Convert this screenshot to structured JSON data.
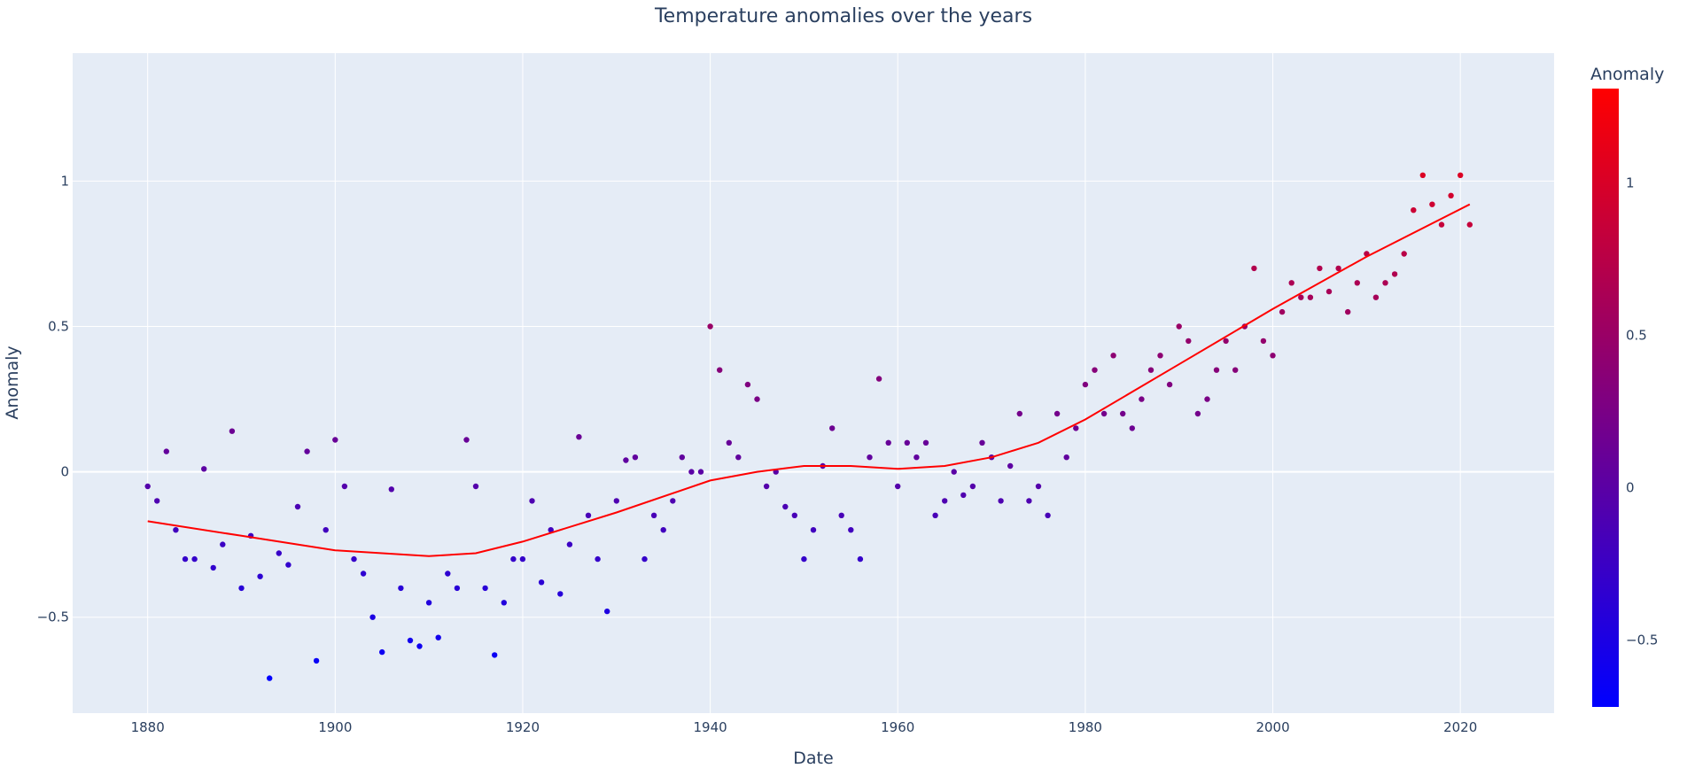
{
  "chart_data": {
    "type": "scatter",
    "title": "Temperature anomalies over the years",
    "xlabel": "Date",
    "ylabel": "Anomaly",
    "xlim": [
      1872,
      2030
    ],
    "ylim": [
      -0.83,
      1.44
    ],
    "x_ticks": [
      "1880",
      "1900",
      "1920",
      "1940",
      "1960",
      "1980",
      "2000",
      "2020"
    ],
    "y_ticks": [
      "-0.5",
      "0",
      "0.5",
      "1"
    ],
    "grid": true,
    "colorbar": {
      "title": "Anomaly",
      "range": [
        -0.72,
        1.31
      ],
      "ticks": [
        "-0.5",
        "0",
        "0.5",
        "1"
      ],
      "low_color": "#0000ff",
      "high_color": "#ff0000"
    },
    "marker_colorscale": [
      "#0000ff",
      "#ff0000"
    ],
    "trend_color": "#ff0000",
    "plot_bg": "#e5ecf6",
    "series": [
      {
        "type": "scatter",
        "points": [
          [
            1880.0,
            -0.05
          ],
          [
            1881.0,
            -0.1
          ],
          [
            1882.0,
            0.07
          ],
          [
            1883.0,
            -0.2
          ],
          [
            1884.0,
            -0.3
          ],
          [
            1885.0,
            -0.3
          ],
          [
            1886.0,
            0.01
          ],
          [
            1887.0,
            -0.33
          ],
          [
            1888.0,
            -0.25
          ],
          [
            1889.0,
            0.14
          ],
          [
            1890.0,
            -0.4
          ],
          [
            1891.0,
            -0.22
          ],
          [
            1892.0,
            -0.36
          ],
          [
            1893.0,
            -0.71
          ],
          [
            1894.0,
            -0.28
          ],
          [
            1895.0,
            -0.32
          ],
          [
            1896.0,
            -0.12
          ],
          [
            1897.0,
            0.07
          ],
          [
            1898.0,
            -0.65
          ],
          [
            1899.0,
            -0.2
          ],
          [
            1900.0,
            0.11
          ],
          [
            1901.0,
            -0.05
          ],
          [
            1902.0,
            -0.3
          ],
          [
            1903.0,
            -0.35
          ],
          [
            1904.0,
            -0.5
          ],
          [
            1905.0,
            -0.62
          ],
          [
            1906.0,
            -0.06
          ],
          [
            1907.0,
            -0.4
          ],
          [
            1908.0,
            -0.58
          ],
          [
            1909.0,
            -0.6
          ],
          [
            1910.0,
            -0.45
          ],
          [
            1911.0,
            -0.57
          ],
          [
            1912.0,
            -0.35
          ],
          [
            1913.0,
            -0.4
          ],
          [
            1914.0,
            0.11
          ],
          [
            1915.0,
            -0.05
          ],
          [
            1916.0,
            -0.4
          ],
          [
            1917.0,
            -0.63
          ],
          [
            1918.0,
            -0.45
          ],
          [
            1919.0,
            -0.3
          ],
          [
            1920.0,
            -0.3
          ],
          [
            1921.0,
            -0.1
          ],
          [
            1922.0,
            -0.38
          ],
          [
            1923.0,
            -0.2
          ],
          [
            1924.0,
            -0.42
          ],
          [
            1925.0,
            -0.25
          ],
          [
            1926.0,
            0.12
          ],
          [
            1927.0,
            -0.15
          ],
          [
            1928.0,
            -0.3
          ],
          [
            1929.0,
            -0.48
          ],
          [
            1930.0,
            -0.1
          ],
          [
            1931.0,
            0.04
          ],
          [
            1932.0,
            0.05
          ],
          [
            1933.0,
            -0.3
          ],
          [
            1934.0,
            -0.15
          ],
          [
            1935.0,
            -0.2
          ],
          [
            1936.0,
            -0.1
          ],
          [
            1937.0,
            0.05
          ],
          [
            1938.0,
            0.0
          ],
          [
            1939.0,
            0.0
          ],
          [
            1940.0,
            0.5
          ],
          [
            1941.0,
            0.35
          ],
          [
            1942.0,
            0.1
          ],
          [
            1943.0,
            0.05
          ],
          [
            1944.0,
            0.3
          ],
          [
            1945.0,
            0.25
          ],
          [
            1946.0,
            -0.05
          ],
          [
            1947.0,
            0.0
          ],
          [
            1948.0,
            -0.12
          ],
          [
            1949.0,
            -0.15
          ],
          [
            1950.0,
            -0.3
          ],
          [
            1951.0,
            -0.2
          ],
          [
            1952.0,
            0.02
          ],
          [
            1953.0,
            0.15
          ],
          [
            1954.0,
            -0.15
          ],
          [
            1955.0,
            -0.2
          ],
          [
            1956.0,
            -0.3
          ],
          [
            1957.0,
            0.05
          ],
          [
            1958.0,
            0.32
          ],
          [
            1959.0,
            0.1
          ],
          [
            1960.0,
            -0.05
          ],
          [
            1961.0,
            0.1
          ],
          [
            1962.0,
            0.05
          ],
          [
            1963.0,
            0.1
          ],
          [
            1964.0,
            -0.15
          ],
          [
            1965.0,
            -0.1
          ],
          [
            1966.0,
            0.0
          ],
          [
            1967.0,
            -0.08
          ],
          [
            1968.0,
            -0.05
          ],
          [
            1969.0,
            0.1
          ],
          [
            1970.0,
            0.05
          ],
          [
            1971.0,
            -0.1
          ],
          [
            1972.0,
            0.02
          ],
          [
            1973.0,
            0.2
          ],
          [
            1974.0,
            -0.1
          ],
          [
            1975.0,
            -0.05
          ],
          [
            1976.0,
            -0.15
          ],
          [
            1977.0,
            0.2
          ],
          [
            1978.0,
            0.05
          ],
          [
            1979.0,
            0.15
          ],
          [
            1980.0,
            0.3
          ],
          [
            1981.0,
            0.35
          ],
          [
            1982.0,
            0.2
          ],
          [
            1983.0,
            0.4
          ],
          [
            1984.0,
            0.2
          ],
          [
            1985.0,
            0.15
          ],
          [
            1986.0,
            0.25
          ],
          [
            1987.0,
            0.35
          ],
          [
            1988.0,
            0.4
          ],
          [
            1989.0,
            0.3
          ],
          [
            1990.0,
            0.5
          ],
          [
            1991.0,
            0.45
          ],
          [
            1992.0,
            0.2
          ],
          [
            1993.0,
            0.25
          ],
          [
            1994.0,
            0.35
          ],
          [
            1995.0,
            0.45
          ],
          [
            1996.0,
            0.35
          ],
          [
            1997.0,
            0.5
          ],
          [
            1998.0,
            0.7
          ],
          [
            1999.0,
            0.45
          ],
          [
            2000.0,
            0.4
          ],
          [
            2001.0,
            0.55
          ],
          [
            2002.0,
            0.65
          ],
          [
            2003.0,
            0.6
          ],
          [
            2004.0,
            0.6
          ],
          [
            2005.0,
            0.7
          ],
          [
            2006.0,
            0.62
          ],
          [
            2007.0,
            0.7
          ],
          [
            2008.0,
            0.55
          ],
          [
            2009.0,
            0.65
          ],
          [
            2010.0,
            0.75
          ],
          [
            2011.0,
            0.6
          ],
          [
            2012.0,
            0.65
          ],
          [
            2013.0,
            0.68
          ],
          [
            2014.0,
            0.75
          ],
          [
            2015.0,
            0.9
          ],
          [
            2016.0,
            1.02
          ],
          [
            2017.0,
            0.92
          ],
          [
            2018.0,
            0.85
          ],
          [
            2019.0,
            0.95
          ],
          [
            2020.0,
            1.02
          ],
          [
            2021.0,
            0.85
          ]
        ]
      },
      {
        "type": "line",
        "points": [
          [
            1880,
            -0.17
          ],
          [
            1890,
            -0.22
          ],
          [
            1900,
            -0.27
          ],
          [
            1910,
            -0.29
          ],
          [
            1915,
            -0.28
          ],
          [
            1920,
            -0.24
          ],
          [
            1930,
            -0.14
          ],
          [
            1940,
            -0.03
          ],
          [
            1945,
            0.0
          ],
          [
            1950,
            0.02
          ],
          [
            1955,
            0.02
          ],
          [
            1960,
            0.01
          ],
          [
            1965,
            0.02
          ],
          [
            1970,
            0.05
          ],
          [
            1975,
            0.1
          ],
          [
            1980,
            0.18
          ],
          [
            1990,
            0.37
          ],
          [
            2000,
            0.56
          ],
          [
            2010,
            0.74
          ],
          [
            2021,
            0.92
          ]
        ]
      }
    ]
  }
}
